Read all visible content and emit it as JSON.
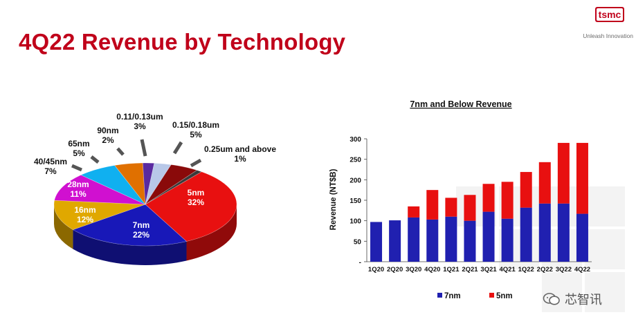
{
  "slide": {
    "title": "4Q22 Revenue by Technology",
    "logo_text": "tsmc",
    "tagline": "Unleash Innovation",
    "watermark": "芯智讯"
  },
  "chart_data": [
    {
      "type": "pie",
      "title": "",
      "slices": [
        {
          "label": "5nm",
          "value": 32,
          "pct_label": "32%",
          "color": "#e81010"
        },
        {
          "label": "7nm",
          "value": 22,
          "pct_label": "22%",
          "color": "#1818b8"
        },
        {
          "label": "16nm",
          "value": 12,
          "pct_label": "12%",
          "color": "#e0a800"
        },
        {
          "label": "28nm",
          "value": 11,
          "pct_label": "11%",
          "color": "#d010d0"
        },
        {
          "label": "40/45nm",
          "value": 7,
          "pct_label": "7%",
          "color": "#10b0f0"
        },
        {
          "label": "65nm",
          "value": 5,
          "pct_label": "5%",
          "color": "#e07000"
        },
        {
          "label": "90nm",
          "value": 2,
          "pct_label": "2%",
          "color": "#5a2aa0"
        },
        {
          "label": "0.11/0.13um",
          "value": 3,
          "pct_label": "3%",
          "color": "#b8c8e8"
        },
        {
          "label": "0.15/0.18um",
          "value": 5,
          "pct_label": "5%",
          "color": "#8a0a0a"
        },
        {
          "label": "0.25um and above",
          "value": 1,
          "pct_label": "1%",
          "color": "#3a3a3a"
        }
      ]
    },
    {
      "type": "bar",
      "stacked": true,
      "title": "7nm and Below Revenue",
      "xlabel": "",
      "ylabel": "Revenue (NT$B)",
      "ylim": [
        0,
        300
      ],
      "yticks": [
        "-",
        "50",
        "100",
        "150",
        "200",
        "250",
        "300"
      ],
      "categories": [
        "1Q20",
        "2Q20",
        "3Q20",
        "4Q20",
        "1Q21",
        "2Q21",
        "3Q21",
        "4Q21",
        "1Q22",
        "2Q22",
        "3Q22",
        "4Q22"
      ],
      "series": [
        {
          "name": "7nm",
          "color": "#2020b0",
          "values": [
            97,
            101,
            108,
            103,
            110,
            100,
            122,
            105,
            132,
            142,
            142,
            117
          ]
        },
        {
          "name": "5nm",
          "color": "#e81010",
          "values": [
            0,
            0,
            27,
            72,
            46,
            63,
            68,
            90,
            87,
            101,
            148,
            173
          ]
        }
      ],
      "legend_position": "bottom"
    }
  ]
}
